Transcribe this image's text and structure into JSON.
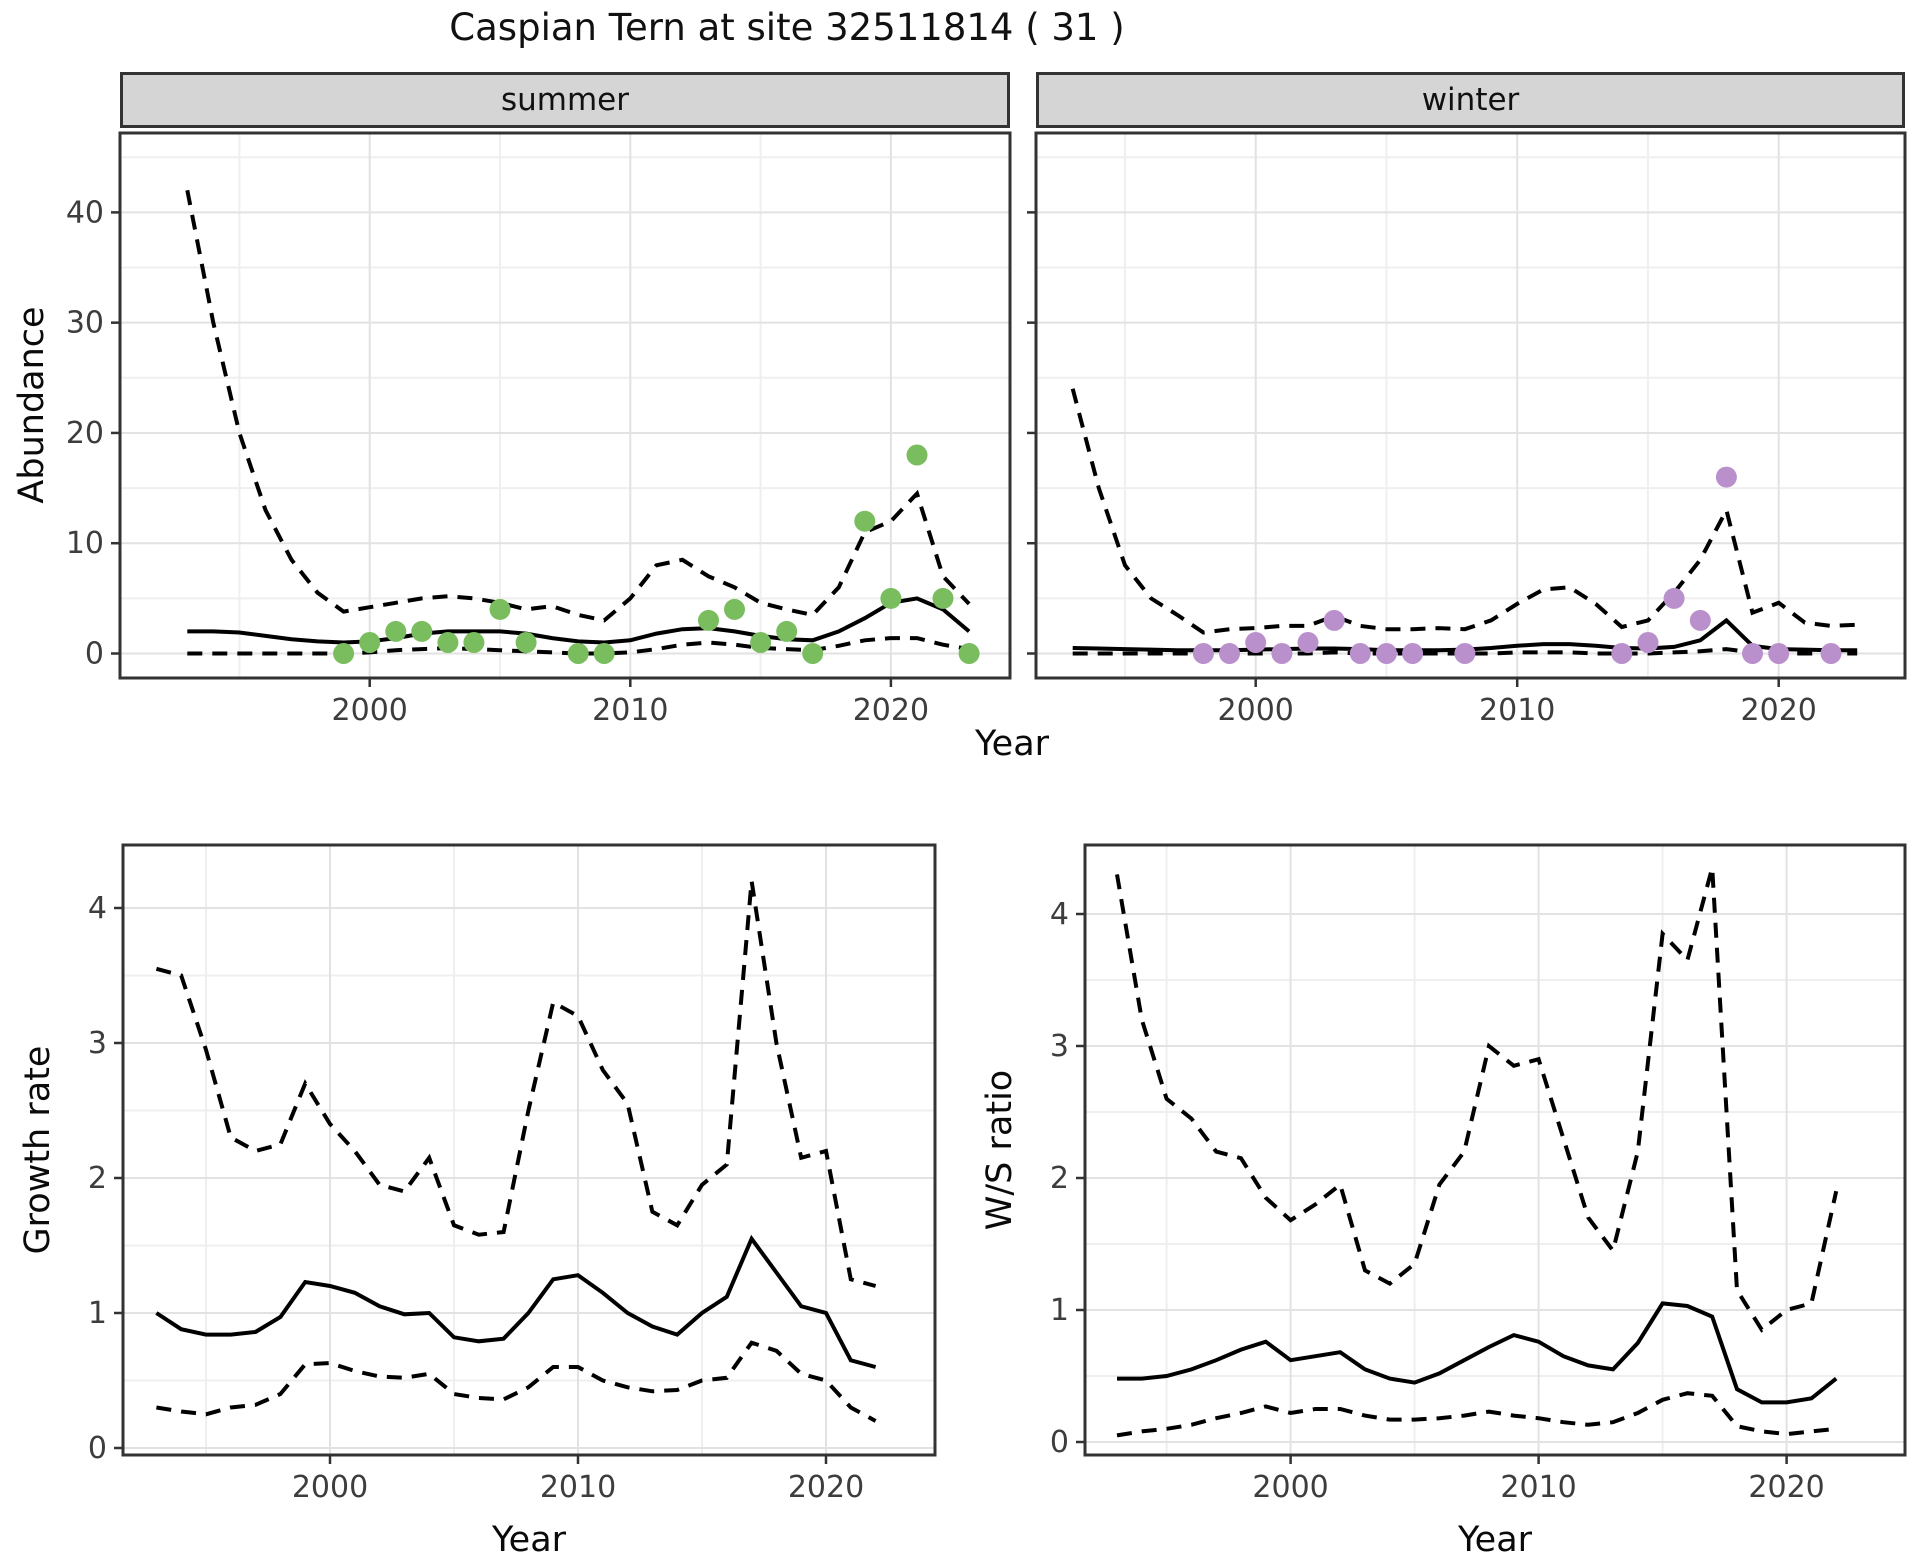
{
  "title": "Caspian Tern at site 32511814 ( 31 )",
  "colors": {
    "summer_points": "#7ABD5F",
    "winter_points": "#BA90CC",
    "strip_bg": "#D5D5D5",
    "grid_major": "#E2E2E2",
    "grid_minor": "#EFEFEF",
    "panel_border": "#333333",
    "line": "#000000",
    "tick_text": "#3d3d3d"
  },
  "chart_data": [
    {
      "id": "abundance-summer",
      "type": "line",
      "facet_label": "summer",
      "ylabel": "Abundance",
      "xlabel": "Year",
      "x_ticks": [
        2000,
        2010,
        2020
      ],
      "y_ticks": [
        0,
        10,
        20,
        30,
        40
      ],
      "xlim": [
        1990.4,
        2024.6
      ],
      "ylim": [
        -2.2,
        47.2
      ],
      "grid": true,
      "years": [
        1993,
        1994,
        1995,
        1996,
        1997,
        1998,
        1999,
        2000,
        2001,
        2002,
        2003,
        2004,
        2005,
        2006,
        2007,
        2008,
        2009,
        2010,
        2011,
        2012,
        2013,
        2014,
        2015,
        2016,
        2017,
        2018,
        2019,
        2020,
        2021,
        2022,
        2023
      ],
      "series": [
        {
          "name": "median",
          "style": "solid",
          "values": [
            2,
            2,
            1.9,
            1.6,
            1.3,
            1.1,
            1,
            1.1,
            1.4,
            1.8,
            2,
            2,
            2,
            1.8,
            1.4,
            1.1,
            1,
            1.2,
            1.8,
            2.2,
            2.3,
            2,
            1.6,
            1.3,
            1.2,
            2,
            3.2,
            4.6,
            5,
            4,
            2
          ]
        },
        {
          "name": "upper_ci",
          "style": "dashed",
          "values": [
            42,
            30,
            20,
            13,
            8.5,
            5.5,
            3.8,
            4.2,
            4.6,
            5,
            5.2,
            5,
            4.6,
            4,
            4.3,
            3.5,
            3,
            5,
            8,
            8.5,
            7,
            6,
            4.6,
            4,
            3.5,
            6,
            11,
            12,
            14.5,
            7,
            4.5
          ]
        },
        {
          "name": "lower_ci",
          "style": "dashed",
          "values": [
            0,
            0,
            0,
            0,
            0,
            0,
            0,
            0.1,
            0.3,
            0.4,
            0.5,
            0.4,
            0.3,
            0.2,
            0.1,
            0,
            0,
            0.1,
            0.4,
            0.8,
            1,
            0.8,
            0.5,
            0.4,
            0.3,
            0.7,
            1.2,
            1.4,
            1.4,
            0.8,
            0.4
          ]
        }
      ],
      "points": {
        "name": "observed_count",
        "color": "#7ABD5F",
        "data": [
          [
            1999,
            0
          ],
          [
            2000,
            1
          ],
          [
            2001,
            2
          ],
          [
            2002,
            2
          ],
          [
            2003,
            1
          ],
          [
            2004,
            1
          ],
          [
            2005,
            4
          ],
          [
            2006,
            1
          ],
          [
            2008,
            0
          ],
          [
            2009,
            0
          ],
          [
            2013,
            3
          ],
          [
            2014,
            4
          ],
          [
            2015,
            1
          ],
          [
            2016,
            2
          ],
          [
            2017,
            0
          ],
          [
            2019,
            12
          ],
          [
            2020,
            5
          ],
          [
            2021,
            18
          ],
          [
            2022,
            5
          ],
          [
            2023,
            0
          ]
        ]
      }
    },
    {
      "id": "abundance-winter",
      "type": "line",
      "facet_label": "winter",
      "ylabel": "Abundance",
      "xlabel": "Year",
      "x_ticks": [
        2000,
        2010,
        2020
      ],
      "y_ticks": [
        0,
        10,
        20,
        30,
        40
      ],
      "xlim": [
        1991.6,
        2024.8
      ],
      "ylim": [
        -2.2,
        47.2
      ],
      "grid": true,
      "years": [
        1993,
        1994,
        1995,
        1996,
        1997,
        1998,
        1999,
        2000,
        2001,
        2002,
        2003,
        2004,
        2005,
        2006,
        2007,
        2008,
        2009,
        2010,
        2011,
        2012,
        2013,
        2014,
        2015,
        2016,
        2017,
        2018,
        2019,
        2020,
        2021,
        2022,
        2023
      ],
      "series": [
        {
          "name": "median",
          "style": "solid",
          "values": [
            0.5,
            0.45,
            0.4,
            0.35,
            0.3,
            0.3,
            0.3,
            0.35,
            0.4,
            0.45,
            0.45,
            0.4,
            0.3,
            0.3,
            0.3,
            0.35,
            0.5,
            0.7,
            0.85,
            0.85,
            0.7,
            0.5,
            0.45,
            0.6,
            1.2,
            3.0,
            0.7,
            0.4,
            0.35,
            0.3,
            0.3
          ]
        },
        {
          "name": "upper_ci",
          "style": "dashed",
          "values": [
            24,
            15,
            8,
            5,
            3.5,
            1.9,
            2.2,
            2.3,
            2.5,
            2.5,
            3.4,
            2.5,
            2.2,
            2.2,
            2.3,
            2.2,
            3.0,
            4.5,
            5.8,
            6.0,
            4.5,
            2.4,
            3.0,
            5.5,
            8.5,
            13,
            3.7,
            4.6,
            2.8,
            2.5,
            2.6
          ]
        },
        {
          "name": "lower_ci",
          "style": "dashed",
          "values": [
            0,
            0,
            0,
            0,
            0,
            0,
            0,
            0,
            0,
            0,
            0.1,
            0,
            0,
            0,
            0,
            0,
            0,
            0.1,
            0.1,
            0.1,
            0,
            0,
            0,
            0.1,
            0.2,
            0.4,
            0.1,
            0,
            0,
            0,
            0
          ]
        }
      ],
      "points": {
        "name": "observed_count",
        "color": "#BA90CC",
        "data": [
          [
            1998,
            0
          ],
          [
            1999,
            0
          ],
          [
            2000,
            1
          ],
          [
            2001,
            0
          ],
          [
            2002,
            1
          ],
          [
            2003,
            3
          ],
          [
            2004,
            0
          ],
          [
            2005,
            0
          ],
          [
            2006,
            0
          ],
          [
            2008,
            0
          ],
          [
            2014,
            0
          ],
          [
            2015,
            1
          ],
          [
            2016,
            5
          ],
          [
            2017,
            3
          ],
          [
            2018,
            16
          ],
          [
            2019,
            0
          ],
          [
            2020,
            0
          ],
          [
            2022,
            0
          ]
        ]
      }
    },
    {
      "id": "growth-rate",
      "type": "line",
      "facet_label": "",
      "ylabel": "Growth rate",
      "xlabel": "Year",
      "x_ticks": [
        2000,
        2010,
        2020
      ],
      "y_ticks": [
        0,
        1,
        2,
        3,
        4
      ],
      "xlim": [
        1991.7,
        2024.4
      ],
      "ylim": [
        -0.05,
        4.47
      ],
      "grid": true,
      "years": [
        1993,
        1994,
        1995,
        1996,
        1997,
        1998,
        1999,
        2000,
        2001,
        2002,
        2003,
        2004,
        2005,
        2006,
        2007,
        2008,
        2009,
        2010,
        2011,
        2012,
        2013,
        2014,
        2015,
        2016,
        2017,
        2018,
        2019,
        2020,
        2021,
        2022
      ],
      "series": [
        {
          "name": "median",
          "style": "solid",
          "values": [
            1.0,
            0.88,
            0.84,
            0.84,
            0.86,
            0.97,
            1.23,
            1.2,
            1.15,
            1.05,
            0.99,
            1.0,
            0.82,
            0.79,
            0.81,
            1.0,
            1.25,
            1.28,
            1.15,
            1.0,
            0.9,
            0.84,
            1.0,
            1.12,
            1.55,
            1.3,
            1.05,
            1.0,
            0.65,
            0.6
          ]
        },
        {
          "name": "upper_ci",
          "style": "dashed",
          "values": [
            3.55,
            3.5,
            2.95,
            2.3,
            2.2,
            2.25,
            2.7,
            2.4,
            2.2,
            1.95,
            1.9,
            2.15,
            1.65,
            1.58,
            1.6,
            2.5,
            3.3,
            3.2,
            2.8,
            2.55,
            1.75,
            1.65,
            1.95,
            2.1,
            4.2,
            3.0,
            2.15,
            2.2,
            1.25,
            1.2
          ]
        },
        {
          "name": "lower_ci",
          "style": "dashed",
          "values": [
            0.3,
            0.27,
            0.25,
            0.3,
            0.32,
            0.4,
            0.62,
            0.63,
            0.57,
            0.53,
            0.52,
            0.55,
            0.4,
            0.37,
            0.36,
            0.45,
            0.6,
            0.6,
            0.5,
            0.45,
            0.42,
            0.43,
            0.5,
            0.52,
            0.78,
            0.72,
            0.55,
            0.5,
            0.3,
            0.2
          ]
        }
      ],
      "points": null
    },
    {
      "id": "ws-ratio",
      "type": "line",
      "facet_label": "",
      "ylabel": "W/S ratio",
      "xlabel": "Year",
      "x_ticks": [
        2000,
        2010,
        2020
      ],
      "y_ticks": [
        0,
        1,
        2,
        3,
        4
      ],
      "xlim": [
        1991.7,
        2024.4
      ],
      "ylim": [
        -0.1,
        4.52
      ],
      "grid": true,
      "years": [
        1993,
        1994,
        1995,
        1996,
        1997,
        1998,
        1999,
        2000,
        2001,
        2002,
        2003,
        2004,
        2005,
        2006,
        2007,
        2008,
        2009,
        2010,
        2011,
        2012,
        2013,
        2014,
        2015,
        2016,
        2017,
        2018,
        2019,
        2020,
        2021,
        2022
      ],
      "series": [
        {
          "name": "median",
          "style": "solid",
          "values": [
            0.48,
            0.48,
            0.5,
            0.55,
            0.62,
            0.7,
            0.76,
            0.62,
            0.65,
            0.68,
            0.55,
            0.48,
            0.45,
            0.52,
            0.62,
            0.72,
            0.81,
            0.76,
            0.65,
            0.58,
            0.55,
            0.75,
            1.05,
            1.03,
            0.95,
            0.4,
            0.3,
            0.3,
            0.33,
            0.48
          ]
        },
        {
          "name": "upper_ci",
          "style": "dashed",
          "values": [
            4.3,
            3.2,
            2.6,
            2.45,
            2.2,
            2.15,
            1.85,
            1.68,
            1.8,
            1.95,
            1.3,
            1.2,
            1.35,
            1.95,
            2.2,
            3.0,
            2.85,
            2.9,
            2.3,
            1.7,
            1.45,
            2.2,
            3.85,
            3.65,
            4.35,
            1.15,
            0.85,
            1.0,
            1.05,
            1.9
          ]
        },
        {
          "name": "lower_ci",
          "style": "dashed",
          "values": [
            0.05,
            0.08,
            0.1,
            0.13,
            0.18,
            0.22,
            0.27,
            0.22,
            0.25,
            0.25,
            0.2,
            0.17,
            0.17,
            0.18,
            0.2,
            0.23,
            0.2,
            0.18,
            0.15,
            0.13,
            0.15,
            0.22,
            0.32,
            0.37,
            0.35,
            0.12,
            0.08,
            0.06,
            0.08,
            0.1
          ]
        }
      ],
      "points": null
    }
  ]
}
